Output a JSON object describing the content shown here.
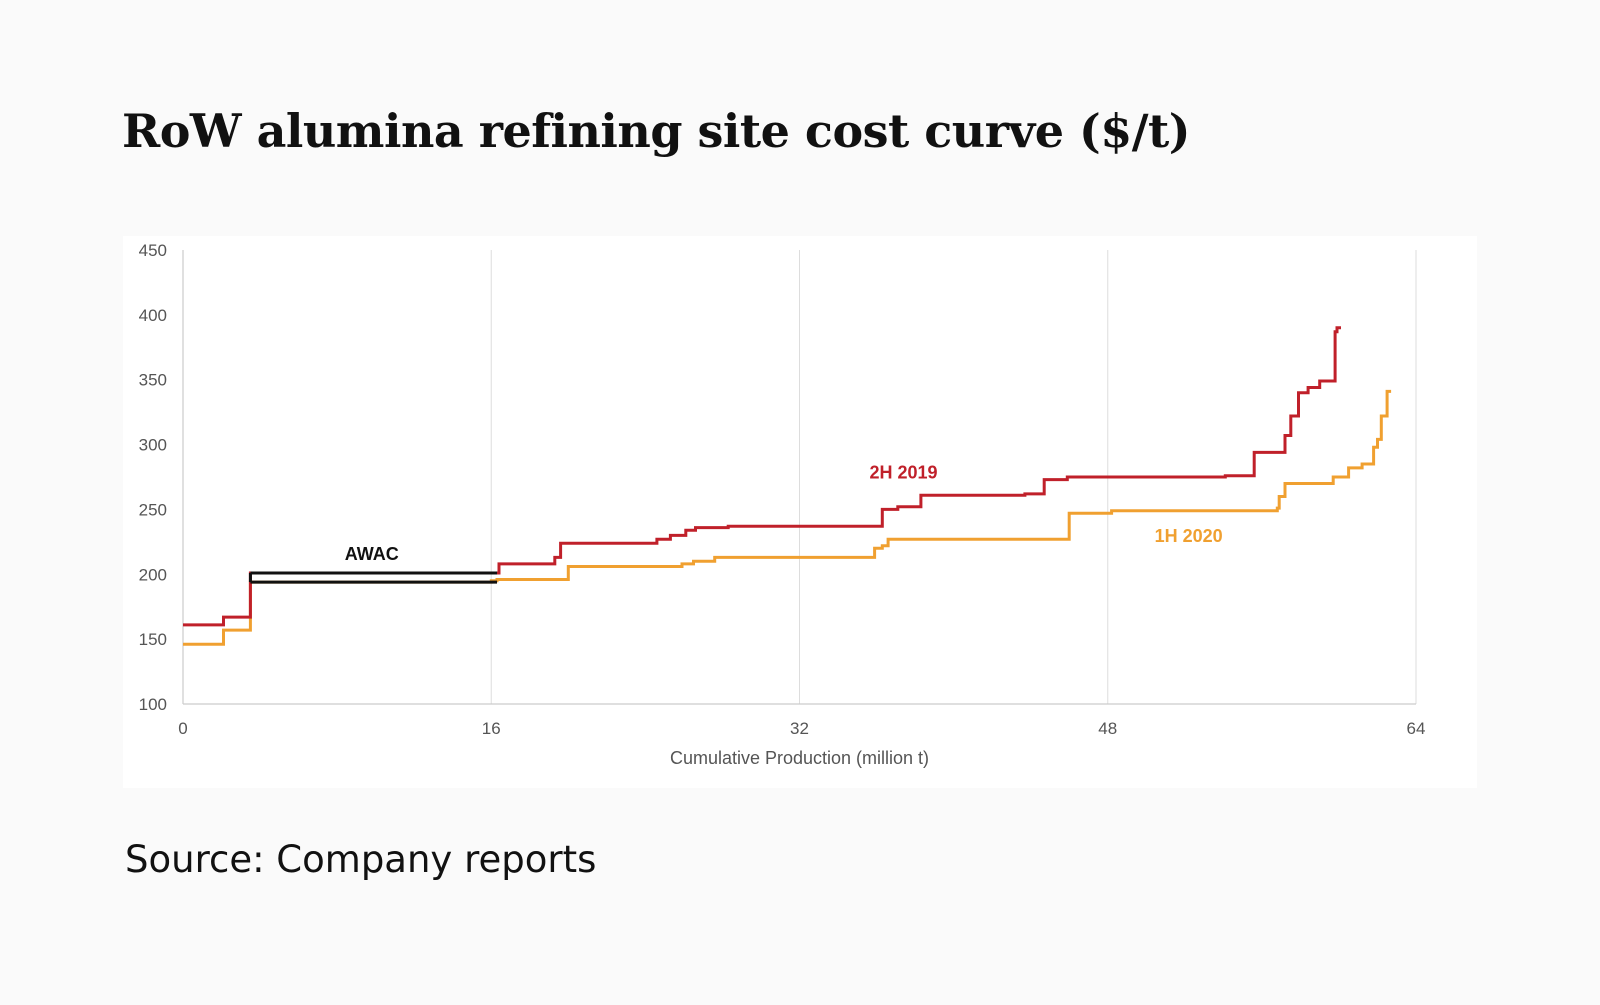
{
  "title": "RoW alumina refining site cost curve ($/t)",
  "source": "Source: Company reports",
  "colors": {
    "series_2h2019": "#c0202a",
    "series_1h2020": "#f0a030",
    "awac": "#111111",
    "grid": "#dddddd",
    "axis": "#cccccc"
  },
  "chart_data": {
    "type": "line",
    "step": true,
    "title": "",
    "xlabel": "Cumulative Production (million t)",
    "ylabel": "",
    "xlim": [
      0,
      64
    ],
    "ylim": [
      100,
      450
    ],
    "x_ticks": [
      0,
      16,
      32,
      48,
      64
    ],
    "y_ticks": [
      100,
      150,
      200,
      250,
      300,
      350,
      400,
      450
    ],
    "grid": {
      "vertical": true,
      "horizontal": false
    },
    "series": [
      {
        "name": "2H 2019",
        "x": [
          0,
          2.1,
          3.5,
          16.4,
          19.3,
          19.6,
          24.6,
          25.3,
          26.1,
          26.6,
          28.3,
          36.3,
          37.1,
          38.3,
          43.7,
          44.7,
          45.9,
          54.1,
          55.6,
          57.2,
          57.5,
          57.9,
          58.4,
          59.0,
          59.8,
          59.9
        ],
        "y": [
          161,
          167,
          201,
          208,
          213,
          224,
          227,
          230,
          234,
          236,
          237,
          250,
          252,
          261,
          262,
          273,
          275,
          276,
          294,
          307,
          322,
          340,
          344,
          349,
          387,
          390
        ]
      },
      {
        "name": "1H 2020",
        "x": [
          0,
          2.1,
          3.5,
          16.0,
          16.3,
          20.0,
          25.9,
          26.5,
          27.6,
          35.9,
          36.3,
          36.6,
          37.3,
          46.0,
          48.2,
          56.8,
          56.9,
          57.2,
          59.7,
          60.5,
          61.2,
          61.8,
          62.0,
          62.2,
          62.5
        ],
        "y": [
          146,
          157,
          194,
          195,
          196,
          206,
          208,
          210,
          213,
          220,
          222,
          227,
          227,
          247,
          249,
          251,
          260,
          270,
          275,
          282,
          285,
          298,
          304,
          322,
          341
        ]
      },
      {
        "name": "AWAC",
        "bands": [
          {
            "x_start": 3.5,
            "x_end": 16.3,
            "y": 201
          },
          {
            "x_start": 3.5,
            "x_end": 16.3,
            "y": 194
          }
        ]
      }
    ],
    "annotations": [
      {
        "text": "2H 2019",
        "x": 37.4,
        "y": 274
      },
      {
        "text": "1H 2020",
        "x": 52.2,
        "y": 225
      },
      {
        "text": "AWAC",
        "x": 9.8,
        "y": 211
      }
    ]
  }
}
